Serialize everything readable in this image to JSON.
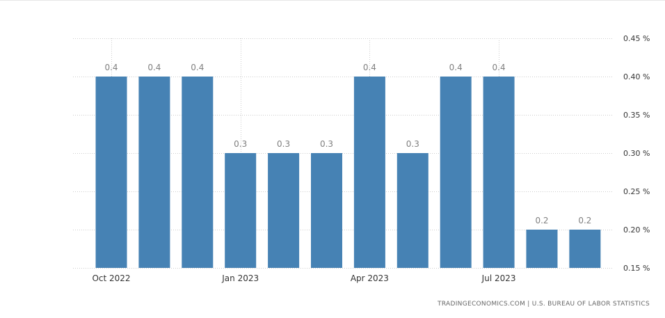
{
  "chart_data": {
    "type": "bar",
    "categories": [
      "Oct 2022",
      "Nov 2022",
      "Dec 2022",
      "Jan 2023",
      "Feb 2023",
      "Mar 2023",
      "Apr 2023",
      "May 2023",
      "Jun 2023",
      "Jul 2023",
      "Aug 2023",
      "Sep 2023"
    ],
    "values": [
      0.4,
      0.4,
      0.4,
      0.3,
      0.3,
      0.3,
      0.4,
      0.3,
      0.4,
      0.4,
      0.2,
      0.2
    ],
    "data_labels": [
      "0.4",
      "0.4",
      "0.4",
      "0.3",
      "0.3",
      "0.3",
      "0.4",
      "0.3",
      "0.4",
      "0.4",
      "0.2",
      "0.2"
    ],
    "x_tick_labels": [
      {
        "index": 0,
        "label": "Oct 2022"
      },
      {
        "index": 3,
        "label": "Jan 2023"
      },
      {
        "index": 6,
        "label": "Apr 2023"
      },
      {
        "index": 9,
        "label": "Jul 2023"
      }
    ],
    "y_ticks": [
      0.15,
      0.2,
      0.25,
      0.3,
      0.35,
      0.4,
      0.45
    ],
    "y_tick_labels": [
      "0.15 %",
      "0.20 %",
      "0.25 %",
      "0.30 %",
      "0.35 %",
      "0.40 %",
      "0.45 %"
    ],
    "ylim": [
      0.15,
      0.45
    ],
    "y_axis_side": "right",
    "grid": true,
    "title": "",
    "xlabel": "",
    "ylabel": "",
    "bar_color": "#4682b4",
    "label_color": "#7f7f7f",
    "grid_color": "#cccccc"
  },
  "footer": {
    "source": "TRADINGECONOMICS.COM | U.S. BUREAU OF LABOR STATISTICS"
  }
}
